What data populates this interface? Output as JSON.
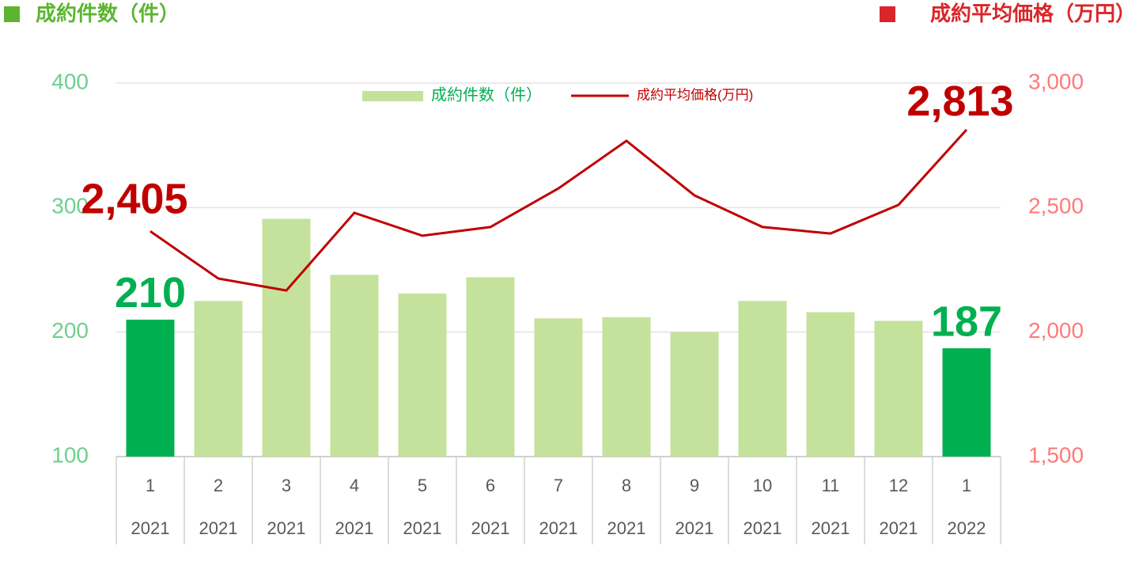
{
  "chart_data": {
    "type": "bar_line",
    "left_title": "成約件数（件）",
    "right_title": "成約平均価格（万円）",
    "categories": [
      [
        "1",
        "2021"
      ],
      [
        "2",
        "2021"
      ],
      [
        "3",
        "2021"
      ],
      [
        "4",
        "2021"
      ],
      [
        "5",
        "2021"
      ],
      [
        "6",
        "2021"
      ],
      [
        "7",
        "2021"
      ],
      [
        "8",
        "2021"
      ],
      [
        "9",
        "2021"
      ],
      [
        "10",
        "2021"
      ],
      [
        "11",
        "2021"
      ],
      [
        "12",
        "2021"
      ],
      [
        "1",
        "2022"
      ]
    ],
    "series": [
      {
        "name": "成約件数（件）",
        "type": "bar",
        "color": "#c5e29c",
        "point_colors": [
          "#00b050",
          "#c5e29c",
          "#c5e29c",
          "#c5e29c",
          "#c5e29c",
          "#c5e29c",
          "#c5e29c",
          "#c5e29c",
          "#c5e29c",
          "#c5e29c",
          "#c5e29c",
          "#c5e29c",
          "#00b050"
        ],
        "values": [
          210,
          225,
          291,
          246,
          231,
          244,
          211,
          212,
          200,
          225,
          216,
          209,
          187
        ],
        "value_labels": [
          "210",
          null,
          null,
          null,
          null,
          null,
          null,
          null,
          null,
          null,
          null,
          null,
          "187"
        ]
      },
      {
        "name": "成約平均価格(万円)",
        "type": "line",
        "axis": "y2",
        "color": "#c00000",
        "values": [
          2405,
          2215,
          2167,
          2479,
          2387,
          2422,
          2577,
          2768,
          2549,
          2422,
          2396,
          2511,
          2813
        ],
        "value_labels": [
          "2,405",
          null,
          null,
          null,
          null,
          null,
          null,
          null,
          null,
          null,
          null,
          null,
          "2,813"
        ]
      }
    ],
    "ylim": [
      100,
      400
    ],
    "yticks": [
      100,
      200,
      300,
      400
    ],
    "y2lim": [
      1500,
      3000
    ],
    "y2ticks": [
      {
        "value": 1500,
        "label": "1,500"
      },
      {
        "value": 2000,
        "label": "2,000"
      },
      {
        "value": 2500,
        "label": "2,500"
      },
      {
        "value": 3000,
        "label": "3,000"
      }
    ],
    "grid": true
  }
}
